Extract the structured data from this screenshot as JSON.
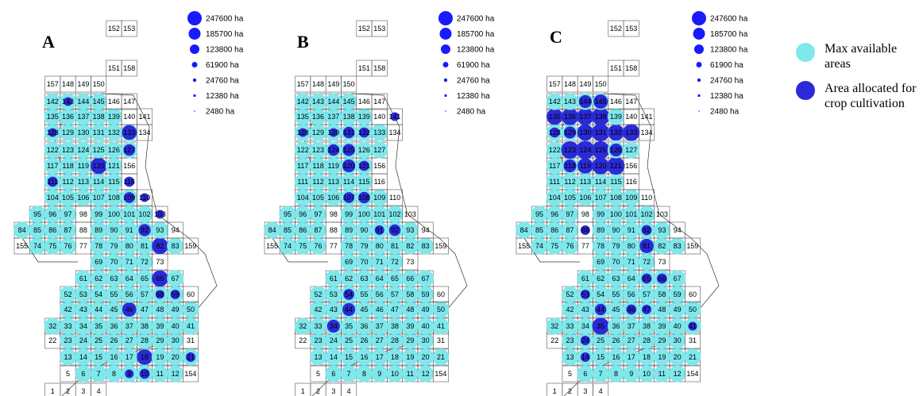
{
  "panels": [
    {
      "label": "A"
    },
    {
      "label": "B"
    },
    {
      "label": "C"
    }
  ],
  "scale_legend": {
    "values": [
      "247600 ha",
      "185700 ha",
      "123800 ha",
      "61900 ha",
      "24760 ha",
      "12380 ha",
      "2480 ha"
    ],
    "color": "#1a1aff"
  },
  "legend": {
    "max_available": {
      "label": "Max available areas",
      "color": "#7fe8ec"
    },
    "allocated": {
      "label": "Area allocated for crop cultivation",
      "color": "#2a2ad8"
    }
  },
  "grid_cells": {
    "rows": [
      [
        "1",
        "2",
        "3",
        "4"
      ],
      [
        "5",
        "6",
        "7",
        "8",
        "9",
        "10",
        "11",
        "12",
        "154"
      ],
      [
        "13",
        "14",
        "15",
        "16",
        "17",
        "18",
        "19",
        "20",
        "21"
      ],
      [
        "22",
        "23",
        "24",
        "25",
        "26",
        "27",
        "28",
        "29",
        "30",
        "31"
      ],
      [
        "32",
        "33",
        "34",
        "35",
        "36",
        "37",
        "38",
        "39",
        "40",
        "41"
      ],
      [
        "42",
        "43",
        "44",
        "45",
        "46",
        "47",
        "48",
        "49",
        "50"
      ],
      [
        "52",
        "53",
        "54",
        "55",
        "56",
        "57",
        "58",
        "59",
        "60"
      ],
      [
        "61",
        "62",
        "63",
        "64",
        "65",
        "66",
        "67"
      ],
      [
        "69",
        "70",
        "71",
        "72",
        "73"
      ],
      [
        "155",
        "74",
        "75",
        "76",
        "77",
        "78",
        "79",
        "80",
        "81",
        "82",
        "83",
        "159"
      ],
      [
        "84",
        "85",
        "86",
        "87",
        "88",
        "89",
        "90",
        "91",
        "92",
        "93",
        "94"
      ],
      [
        "95",
        "96",
        "97",
        "98",
        "99",
        "100",
        "101",
        "102",
        "103"
      ],
      [
        "104",
        "105",
        "106",
        "107",
        "108",
        "109",
        "110"
      ],
      [
        "111",
        "112",
        "113",
        "114",
        "115",
        "116"
      ],
      [
        "117",
        "118",
        "119",
        "120",
        "121",
        "156"
      ],
      [
        "122",
        "123",
        "124",
        "125",
        "126",
        "127"
      ],
      [
        "128",
        "129",
        "130",
        "131",
        "132",
        "133",
        "134"
      ],
      [
        "135",
        "136",
        "137",
        "138",
        "139",
        "140",
        "141"
      ],
      [
        "142",
        "143",
        "144",
        "145",
        "146",
        "147"
      ],
      [
        "157",
        "148",
        "149",
        "150"
      ],
      [
        "151",
        "158"
      ],
      [
        "152",
        "153"
      ]
    ]
  }
}
